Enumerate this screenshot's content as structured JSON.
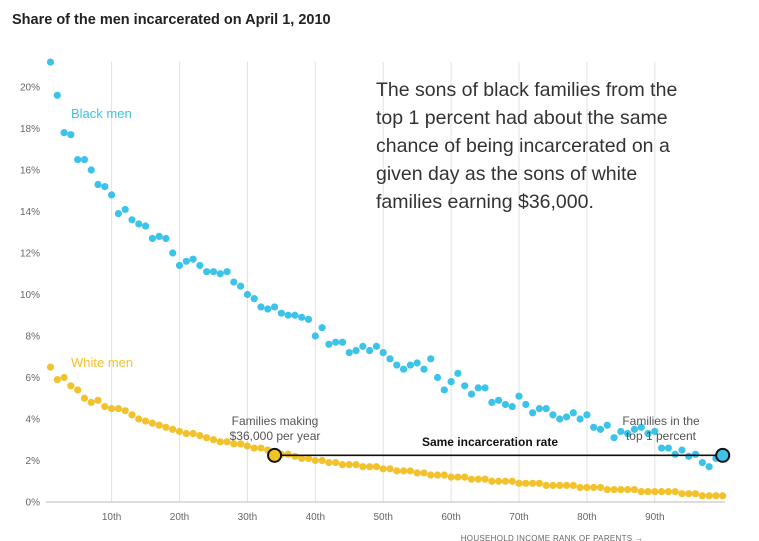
{
  "chart_data": {
    "type": "scatter",
    "title": "Share of the men incarcerated on April 1, 2010",
    "xlabel": "HOUSEHOLD INCOME RANK OF PARENTS →",
    "ylabel": "",
    "xlim": [
      1,
      100
    ],
    "ylim": [
      0,
      21.5
    ],
    "x_ticks": [
      10,
      20,
      30,
      40,
      50,
      60,
      70,
      80,
      90
    ],
    "x_tick_labels": [
      "10th",
      "20th",
      "30th",
      "40th",
      "50th",
      "60th",
      "70th",
      "80th",
      "90th"
    ],
    "y_ticks": [
      0,
      2,
      4,
      6,
      8,
      10,
      12,
      14,
      16,
      18,
      20
    ],
    "y_tick_labels": [
      "0%",
      "2%",
      "4%",
      "6%",
      "8%",
      "10%",
      "12%",
      "14%",
      "16%",
      "18%",
      "20%"
    ],
    "grid": "vertical",
    "series": [
      {
        "name": "Black men",
        "color": "#3cc3e9",
        "x": [
          1,
          2,
          3,
          4,
          5,
          6,
          7,
          8,
          9,
          10,
          11,
          12,
          13,
          14,
          15,
          16,
          17,
          18,
          19,
          20,
          21,
          22,
          23,
          24,
          25,
          26,
          27,
          28,
          29,
          30,
          31,
          32,
          33,
          34,
          35,
          36,
          37,
          38,
          39,
          40,
          41,
          42,
          43,
          44,
          45,
          46,
          47,
          48,
          49,
          50,
          51,
          52,
          53,
          54,
          55,
          56,
          57,
          58,
          59,
          60,
          61,
          62,
          63,
          64,
          65,
          66,
          67,
          68,
          69,
          70,
          71,
          72,
          73,
          74,
          75,
          76,
          77,
          78,
          79,
          80,
          81,
          82,
          83,
          84,
          85,
          86,
          87,
          88,
          89,
          90,
          91,
          92,
          93,
          94,
          95,
          96,
          97,
          98,
          99,
          100
        ],
        "values": [
          21.2,
          19.6,
          17.8,
          17.7,
          16.5,
          16.5,
          16.0,
          15.3,
          15.2,
          14.8,
          13.9,
          14.1,
          13.6,
          13.4,
          13.3,
          12.7,
          12.8,
          12.7,
          12.0,
          11.4,
          11.6,
          11.7,
          11.4,
          11.1,
          11.1,
          11.0,
          11.1,
          10.6,
          10.4,
          10.0,
          9.8,
          9.4,
          9.3,
          9.4,
          9.1,
          9.0,
          9.0,
          8.9,
          8.8,
          8.0,
          8.4,
          7.6,
          7.7,
          7.7,
          7.2,
          7.3,
          7.5,
          7.3,
          7.5,
          7.2,
          6.9,
          6.6,
          6.4,
          6.6,
          6.7,
          6.4,
          6.9,
          6.0,
          5.4,
          5.8,
          6.2,
          5.6,
          5.2,
          5.5,
          5.5,
          4.8,
          4.9,
          4.7,
          4.6,
          5.1,
          4.7,
          4.3,
          4.5,
          4.5,
          4.2,
          4.0,
          4.1,
          4.3,
          4.0,
          4.2,
          3.6,
          3.5,
          3.7,
          3.1,
          3.4,
          3.3,
          3.5,
          3.6,
          3.3,
          3.4,
          2.6,
          2.6,
          2.3,
          2.5,
          2.2,
          2.3,
          1.9,
          1.7,
          2.1,
          2.3
        ]
      },
      {
        "name": "White men",
        "color": "#f2c22c",
        "x": [
          1,
          2,
          3,
          4,
          5,
          6,
          7,
          8,
          9,
          10,
          11,
          12,
          13,
          14,
          15,
          16,
          17,
          18,
          19,
          20,
          21,
          22,
          23,
          24,
          25,
          26,
          27,
          28,
          29,
          30,
          31,
          32,
          33,
          34,
          35,
          36,
          37,
          38,
          39,
          40,
          41,
          42,
          43,
          44,
          45,
          46,
          47,
          48,
          49,
          50,
          51,
          52,
          53,
          54,
          55,
          56,
          57,
          58,
          59,
          60,
          61,
          62,
          63,
          64,
          65,
          66,
          67,
          68,
          69,
          70,
          71,
          72,
          73,
          74,
          75,
          76,
          77,
          78,
          79,
          80,
          81,
          82,
          83,
          84,
          85,
          86,
          87,
          88,
          89,
          90,
          91,
          92,
          93,
          94,
          95,
          96,
          97,
          98,
          99,
          100
        ],
        "values": [
          6.5,
          5.9,
          6.0,
          5.6,
          5.4,
          5.0,
          4.8,
          4.9,
          4.6,
          4.5,
          4.5,
          4.4,
          4.2,
          4.0,
          3.9,
          3.8,
          3.7,
          3.6,
          3.5,
          3.4,
          3.3,
          3.3,
          3.2,
          3.1,
          3.0,
          2.9,
          2.9,
          2.8,
          2.8,
          2.7,
          2.6,
          2.6,
          2.5,
          2.4,
          2.3,
          2.3,
          2.2,
          2.1,
          2.1,
          2.0,
          2.0,
          1.9,
          1.9,
          1.8,
          1.8,
          1.8,
          1.7,
          1.7,
          1.7,
          1.6,
          1.6,
          1.5,
          1.5,
          1.5,
          1.4,
          1.4,
          1.3,
          1.3,
          1.3,
          1.2,
          1.2,
          1.2,
          1.1,
          1.1,
          1.1,
          1.0,
          1.0,
          1.0,
          1.0,
          0.9,
          0.9,
          0.9,
          0.9,
          0.8,
          0.8,
          0.8,
          0.8,
          0.8,
          0.7,
          0.7,
          0.7,
          0.7,
          0.6,
          0.6,
          0.6,
          0.6,
          0.6,
          0.5,
          0.5,
          0.5,
          0.5,
          0.5,
          0.5,
          0.4,
          0.4,
          0.4,
          0.3,
          0.3,
          0.3,
          0.3
        ]
      }
    ],
    "annotations": {
      "main_text": [
        "The sons of black families from the",
        "top 1 percent had about the same",
        "chance of being incarcerated on a",
        "given day as the sons of white",
        "families earning $36,000."
      ],
      "left_note": [
        "Families making",
        "$36,000 per year"
      ],
      "right_note": [
        "Families in the",
        "top 1 percent"
      ],
      "same_rate": "Same incarceration rate",
      "same_rate_y": 2.25,
      "marker_left_x": 34,
      "marker_right_x": 100
    }
  }
}
